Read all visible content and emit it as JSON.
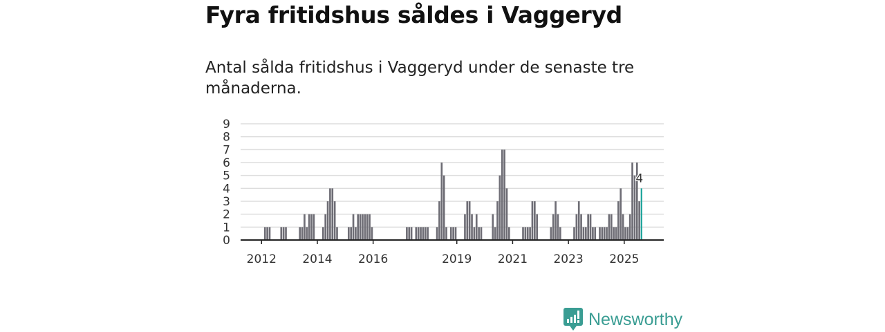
{
  "header": {
    "title": "Fyra fritidshus såldes i Vaggeryd",
    "subtitle": "Antal sålda fritidshus i Vaggeryd under de senaste tre månaderna."
  },
  "chart_data": {
    "type": "bar",
    "title": "Fyra fritidshus såldes i Vaggeryd",
    "subtitle": "Antal sålda fritidshus i Vaggeryd under de senaste tre månaderna.",
    "xlabel": "",
    "ylabel": "",
    "x_unit": "month",
    "x_start": "2012-01",
    "x_range": [
      "2011-04",
      "2026-06"
    ],
    "ylim": [
      0,
      9
    ],
    "yticks": [
      "0",
      "1",
      "2",
      "3",
      "4",
      "5",
      "6",
      "7",
      "8",
      "9"
    ],
    "xticks": [
      "2012",
      "2014",
      "2016",
      "2019",
      "2021",
      "2023",
      "2025"
    ],
    "grid": true,
    "values": [
      0,
      1,
      1,
      1,
      0,
      0,
      0,
      0,
      1,
      1,
      1,
      0,
      0,
      0,
      0,
      0,
      1,
      1,
      2,
      1,
      2,
      2,
      2,
      0,
      0,
      0,
      1,
      2,
      3,
      4,
      4,
      3,
      1,
      0,
      0,
      0,
      0,
      1,
      1,
      2,
      1,
      2,
      2,
      2,
      2,
      2,
      2,
      1,
      0,
      0,
      0,
      0,
      0,
      0,
      0,
      0,
      0,
      0,
      0,
      0,
      0,
      0,
      1,
      1,
      1,
      0,
      1,
      1,
      1,
      1,
      1,
      1,
      0,
      0,
      0,
      1,
      3,
      6,
      5,
      1,
      0,
      1,
      1,
      1,
      0,
      0,
      0,
      2,
      3,
      3,
      2,
      1,
      2,
      1,
      1,
      0,
      0,
      0,
      0,
      2,
      1,
      3,
      5,
      7,
      7,
      4,
      1,
      0,
      0,
      0,
      0,
      0,
      1,
      1,
      1,
      1,
      3,
      3,
      2,
      0,
      0,
      0,
      0,
      0,
      1,
      2,
      3,
      2,
      1,
      0,
      0,
      0,
      0,
      0,
      1,
      2,
      3,
      2,
      1,
      1,
      2,
      2,
      1,
      1,
      0,
      1,
      1,
      1,
      1,
      2,
      2,
      1,
      1,
      3,
      4,
      2,
      1,
      1,
      2,
      6,
      5,
      6,
      3,
      4
    ],
    "highlight_label": "4",
    "colors": {
      "bar": "#6e6d75",
      "highlight": "#1aa39a",
      "grid": "#dddddd",
      "axis": "#222222"
    }
  },
  "footer": {
    "brand": "Newsworthy",
    "brand_color": "#3a9d93"
  }
}
